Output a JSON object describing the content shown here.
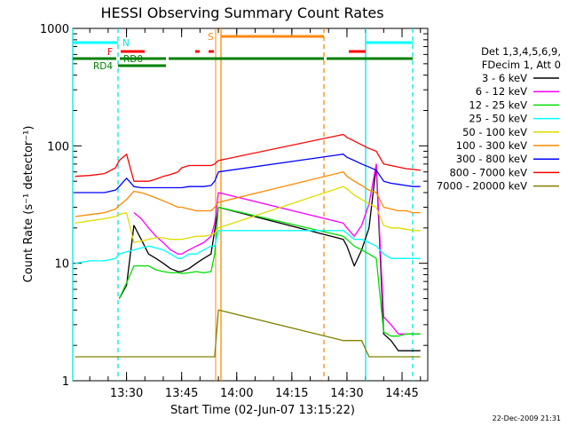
{
  "chart_data": {
    "type": "line",
    "title": "HESSI Observing Summary Count Rates",
    "xlabel": "Start Time (02-Jun-07 13:15:22)",
    "ylabel": "Count Rate (s⁻¹ detector⁻¹)",
    "y_scale": "log",
    "ylim": [
      1,
      1000
    ],
    "xlim": [
      "13:15:22",
      "14:52"
    ],
    "x_ticks": [
      "13:30",
      "13:45",
      "14:00",
      "14:15",
      "14:30",
      "14:45"
    ],
    "y_ticks": [
      "1",
      "10",
      "100",
      "1000"
    ],
    "legend_placement": "right",
    "legend_header": [
      "Det 1,3,4,5,6,9,",
      "FDecim 1, Att 0"
    ],
    "x": [
      "13:16",
      "13:20",
      "13:24",
      "13:27",
      "13:28",
      "13:30",
      "13:32",
      "13:34",
      "13:36",
      "13:38",
      "13:40",
      "13:42",
      "13:44",
      "13:45",
      "13:47",
      "13:49",
      "13:51",
      "13:53",
      "13:54",
      "13:55",
      "14:29",
      "14:30",
      "14:32",
      "14:34",
      "14:36",
      "14:38",
      "14:40",
      "14:42",
      "14:44",
      "14:46",
      "14:48",
      "14:50"
    ],
    "series": [
      {
        "name": "3 - 6 keV",
        "color": "#000000",
        "values": [
          null,
          null,
          null,
          null,
          5,
          6.5,
          21,
          16,
          12,
          11,
          10,
          9,
          8.5,
          8.5,
          9,
          10,
          11,
          12,
          19,
          30,
          16,
          14,
          9.5,
          13,
          20,
          68,
          2.5,
          2.2,
          1.8,
          1.8,
          1.8,
          1.8
        ]
      },
      {
        "name": "6 - 12 keV",
        "color": "#ff00ff",
        "values": [
          null,
          null,
          null,
          null,
          null,
          null,
          27,
          24,
          20,
          17,
          15,
          13,
          12,
          12,
          13,
          14,
          15,
          17,
          22,
          40,
          22,
          20,
          17,
          21,
          32,
          70,
          3.5,
          3,
          2.5,
          2.5,
          2.5,
          2.5
        ]
      },
      {
        "name": "12 - 25 keV",
        "color": "#00dd00",
        "values": [
          null,
          null,
          null,
          null,
          5,
          6.8,
          9.5,
          9.5,
          9.5,
          8.8,
          8.5,
          8.3,
          8.3,
          8.2,
          8.3,
          8.5,
          8.3,
          8.5,
          12,
          30,
          17,
          16,
          14,
          13,
          12,
          11,
          2.6,
          2.4,
          2.4,
          2.5,
          2.5,
          2.5
        ]
      },
      {
        "name": "25 - 50 keV",
        "color": "#00ffff",
        "values": [
          10,
          10.5,
          10.5,
          11,
          12,
          12.5,
          13,
          13.5,
          14,
          13.5,
          13,
          12,
          11,
          11,
          12,
          12,
          13,
          14,
          14,
          19,
          19,
          18,
          16,
          16,
          15,
          14,
          12,
          11,
          11,
          11,
          11,
          11
        ]
      },
      {
        "name": "50 - 100 keV",
        "color": "#dddd00",
        "values": [
          22,
          23,
          24,
          25,
          26,
          27,
          15,
          15.5,
          16,
          16.5,
          16.5,
          16,
          16,
          16,
          16.5,
          17,
          17,
          17.5,
          18,
          20,
          45,
          43,
          38,
          35,
          32,
          30,
          21,
          20,
          20,
          19.5,
          19,
          19
        ]
      },
      {
        "name": "100 - 300 keV",
        "color": "#ff8800",
        "values": [
          25,
          26,
          27,
          29,
          31,
          35,
          41,
          40,
          38,
          36,
          34,
          32,
          30,
          30,
          29,
          28,
          28,
          28,
          30,
          33,
          60,
          55,
          50,
          46,
          42,
          40,
          30,
          29,
          28,
          28,
          27,
          27
        ]
      },
      {
        "name": "300 - 800 keV",
        "color": "#0000ff",
        "values": [
          40,
          40,
          40,
          42,
          45,
          53,
          45,
          44,
          44,
          44,
          44,
          44,
          44,
          44,
          45,
          45,
          45,
          46,
          50,
          60,
          85,
          80,
          75,
          70,
          66,
          62,
          50,
          48,
          47,
          46,
          45,
          45
        ]
      },
      {
        "name": "800 - 7000 keV",
        "color": "#ff0000",
        "values": [
          55,
          56,
          58,
          65,
          75,
          85,
          50,
          50,
          50,
          52,
          55,
          57,
          60,
          65,
          68,
          68,
          68,
          68,
          70,
          75,
          125,
          118,
          110,
          102,
          95,
          90,
          70,
          68,
          66,
          64,
          63,
          62
        ]
      },
      {
        "name": "7000 - 20000 keV",
        "color": "#808000",
        "values": [
          1.6,
          1.6,
          1.6,
          1.6,
          1.6,
          1.6,
          1.6,
          1.6,
          1.6,
          1.6,
          1.6,
          1.6,
          1.6,
          1.6,
          1.6,
          1.6,
          1.6,
          1.6,
          1.6,
          4,
          2.2,
          2.2,
          2.2,
          2.2,
          1.6,
          1.6,
          1.6,
          1.6,
          1.6,
          1.6,
          1.6,
          1.6
        ]
      }
    ],
    "annotations": [
      {
        "text": "N",
        "color": "#00e5e5"
      },
      {
        "text": "F",
        "color": "#ff0000"
      },
      {
        "text": "RD0",
        "color": "#008000"
      },
      {
        "text": "RD4",
        "color": "#008000"
      },
      {
        "text": "S",
        "color": "#ff8800"
      }
    ],
    "timestamp": "22-Dec-2009 21:31"
  }
}
